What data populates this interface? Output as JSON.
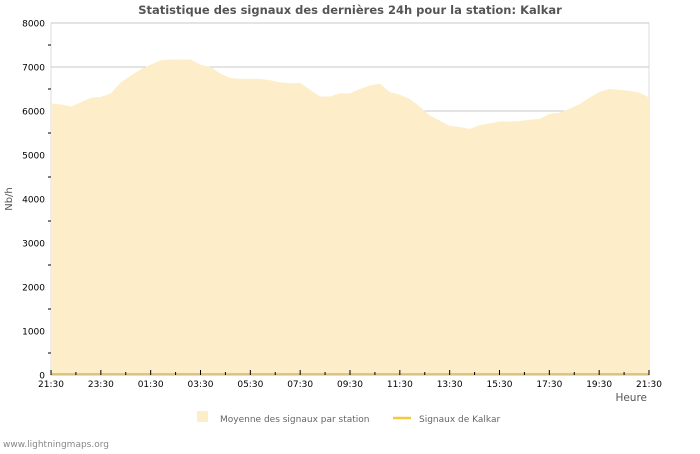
{
  "chart_data": {
    "type": "area",
    "title": "Statistique des signaux des dernières 24h pour la station: Kalkar",
    "xlabel": "Heure",
    "ylabel": "Nb/h",
    "ylim": [
      0,
      8000
    ],
    "yticks": [
      "0",
      "1000",
      "2000",
      "3000",
      "4000",
      "5000",
      "6000",
      "7000",
      "8000"
    ],
    "xticks": [
      "21:30",
      "23:30",
      "01:30",
      "03:30",
      "05:30",
      "07:30",
      "09:30",
      "11:30",
      "13:30",
      "15:30",
      "17:30",
      "19:30",
      "21:30"
    ],
    "x_range_hours": [
      0,
      24
    ],
    "grid": true,
    "legend_position": "bottom",
    "series": [
      {
        "name": "Moyenne des signaux par station",
        "color": "#fdedc9",
        "kind": "area",
        "values": [
          6170,
          6150,
          6100,
          6200,
          6300,
          6320,
          6400,
          6650,
          6800,
          6950,
          7050,
          7150,
          7170,
          7170,
          7170,
          7050,
          7000,
          6850,
          6750,
          6730,
          6730,
          6730,
          6700,
          6650,
          6630,
          6640,
          6480,
          6330,
          6330,
          6400,
          6400,
          6500,
          6580,
          6620,
          6430,
          6370,
          6270,
          6100,
          5900,
          5780,
          5660,
          5640,
          5590,
          5680,
          5720,
          5760,
          5760,
          5770,
          5800,
          5820,
          5930,
          5960,
          6050,
          6150,
          6300,
          6430,
          6500,
          6480,
          6460,
          6420,
          6310
        ]
      },
      {
        "name": "Signaux de Kalkar",
        "color": "#f5c842",
        "kind": "line",
        "values": [
          0,
          0
        ]
      }
    ]
  },
  "footer": {
    "credit": "www.lightningmaps.org"
  }
}
